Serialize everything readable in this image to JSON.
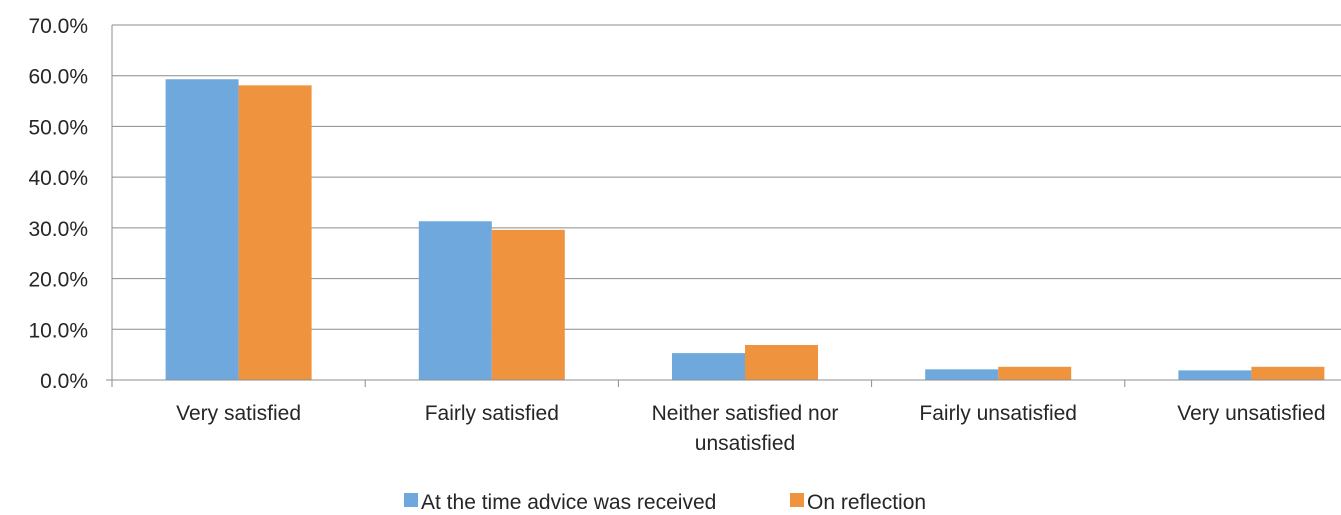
{
  "chart_data": {
    "type": "bar",
    "title": "",
    "xlabel": "",
    "ylabel": "",
    "ylim": [
      0,
      70
    ],
    "y_ticks": [
      0,
      10,
      20,
      30,
      40,
      50,
      60,
      70
    ],
    "y_tick_labels": [
      "0.0%",
      "10.0%",
      "20.0%",
      "30.0%",
      "40.0%",
      "50.0%",
      "60.0%",
      "70.0%"
    ],
    "categories": [
      [
        "Very satisfied"
      ],
      [
        "Fairly satisfied"
      ],
      [
        "Neither satisfied nor",
        "unsatisfied"
      ],
      [
        "Fairly unsatisfied"
      ],
      [
        "Very unsatisfied"
      ]
    ],
    "series": [
      {
        "name": "At the time advice was received",
        "color": "#6fa8dc",
        "values": [
          59.3,
          31.3,
          5.3,
          2.1,
          1.9
        ]
      },
      {
        "name": "On reflection",
        "color": "#f0933f",
        "values": [
          58.1,
          29.6,
          6.9,
          2.6,
          2.6
        ]
      }
    ],
    "grid": true,
    "legend_position": "bottom"
  }
}
